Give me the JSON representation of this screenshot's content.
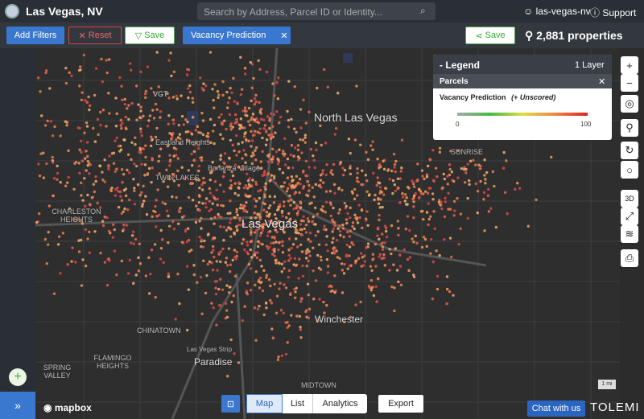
{
  "header": {
    "title": "Las Vegas, NV",
    "search_placeholder": "Search by Address, Parcel ID or Identity...",
    "account": "las-vegas-nv",
    "support": "Support"
  },
  "toolbar": {
    "add_filters": "Add Filters",
    "reset": "Reset",
    "save": "Save",
    "filter_chip": "Vacancy Prediction",
    "save_view": "Save",
    "property_count": "2,881 properties"
  },
  "legend": {
    "title": "- Legend",
    "layer_count": "1 Layer",
    "layer_name": "Parcels",
    "field": "Vacancy Prediction",
    "note": "(+ Unscored)",
    "min": 0,
    "max": 100
  },
  "map_labels": [
    "VGT",
    "North Las Vegas",
    "Eastland Heights",
    "TWIN LAKES",
    "Bonanza Village",
    "CHARLESTON HEIGHTS",
    "Las Vegas",
    "SUNRISE",
    "CHINATOWN",
    "FLAMINGO HEIGHTS",
    "Las Vegas Strip",
    "Paradise",
    "Winchester",
    "SPRING VALLEY",
    "MIDTOWN"
  ],
  "view_tabs": [
    "Map",
    "List",
    "Analytics"
  ],
  "export": "Export",
  "chat": "Chat with us",
  "brand": "TOLEMI",
  "attribution": "mapbox",
  "scale": "1 mi"
}
